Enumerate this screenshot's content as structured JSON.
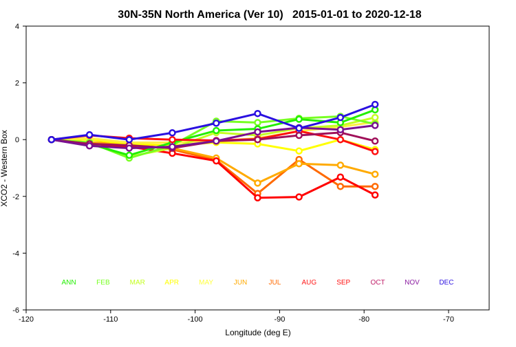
{
  "chart_data": {
    "type": "line",
    "title": "30N-35N North America (Ver 10)   2015-01-01 to 2020-12-18",
    "xlabel": "Longitude (deg E)",
    "ylabel": "XCO2 - Western Box",
    "xlim": [
      -120,
      -65
    ],
    "ylim": [
      -6,
      4
    ],
    "xticks": [
      -120,
      -110,
      -100,
      -90,
      -80,
      -70
    ],
    "yticks": [
      -6,
      -4,
      -2,
      0,
      2,
      4
    ],
    "grid": false,
    "legend_placement": "bottom, inside plot, single row",
    "legend": [
      {
        "label": "ANN",
        "color": "#22ee00"
      },
      {
        "label": "FEB",
        "color": "#77ff22"
      },
      {
        "label": "MAR",
        "color": "#c4ff22"
      },
      {
        "label": "APR",
        "color": "#ffff00"
      },
      {
        "label": "MAY",
        "color": "#ffff44"
      },
      {
        "label": "JUN",
        "color": "#ffaa00"
      },
      {
        "label": "JUL",
        "color": "#ff6a00"
      },
      {
        "label": "AUG",
        "color": "#ff1a1a"
      },
      {
        "label": "SEP",
        "color": "#ff1010"
      },
      {
        "label": "OCT",
        "color": "#c0206a"
      },
      {
        "label": "NOV",
        "color": "#8a1aa0"
      },
      {
        "label": "DEC",
        "color": "#2a10e0"
      }
    ],
    "x": [
      -117,
      -112.5,
      -107.8,
      -102.7,
      -97.5,
      -92.6,
      -87.7,
      -82.8,
      -78.7
    ],
    "series": [
      {
        "color": "#ff6a00",
        "values": [
          0,
          -0.1,
          -0.15,
          -0.35,
          -0.72,
          -1.9,
          -0.7,
          -1.65,
          -1.65
        ]
      },
      {
        "color": "#ffaa00",
        "values": [
          0,
          -0.1,
          -0.2,
          -0.3,
          -0.65,
          -1.53,
          -0.85,
          -0.9,
          -1.22
        ]
      },
      {
        "color": "#ff0000",
        "values": [
          0,
          -0.2,
          -0.25,
          -0.48,
          -0.75,
          -2.05,
          -2.02,
          -1.32,
          -1.95
        ]
      },
      {
        "color": "#ffff00",
        "values": [
          0,
          0,
          -0.15,
          -0.2,
          -0.1,
          -0.15,
          -0.4,
          0,
          -0.35
        ]
      },
      {
        "color": "#ffee44",
        "values": [
          0,
          0.05,
          -0.1,
          -0.1,
          -0.05,
          0.05,
          0.3,
          0.45,
          0.62
        ]
      },
      {
        "color": "#c4ff22",
        "values": [
          0,
          -0.1,
          -0.6,
          -0.3,
          0.25,
          0.15,
          0.4,
          0.5,
          0.78
        ]
      },
      {
        "color": "#77ff22",
        "values": [
          0,
          -0.1,
          -0.65,
          -0.2,
          0.65,
          0.6,
          0.75,
          0.82,
          0.55
        ]
      },
      {
        "color": "#22ee00",
        "values": [
          0,
          -0.15,
          -0.55,
          -0.1,
          0.32,
          0.38,
          0.72,
          0.6,
          1.05
        ]
      },
      {
        "color": "#ff1010",
        "values": [
          0,
          0.15,
          0.05,
          0,
          -0.03,
          0.02,
          0.3,
          0,
          -0.42
        ]
      },
      {
        "color": "#a0105a",
        "values": [
          0,
          -0.15,
          -0.2,
          -0.3,
          -0.05,
          0,
          0.15,
          0.25,
          -0.05
        ]
      },
      {
        "color": "#7a1090",
        "values": [
          0,
          -0.22,
          -0.3,
          -0.25,
          -0.05,
          0.27,
          0.42,
          0.35,
          0.5
        ]
      },
      {
        "color": "#2a10e0",
        "values": [
          0,
          0.17,
          0,
          0.24,
          0.58,
          0.92,
          0.4,
          0.78,
          1.24
        ]
      }
    ]
  }
}
